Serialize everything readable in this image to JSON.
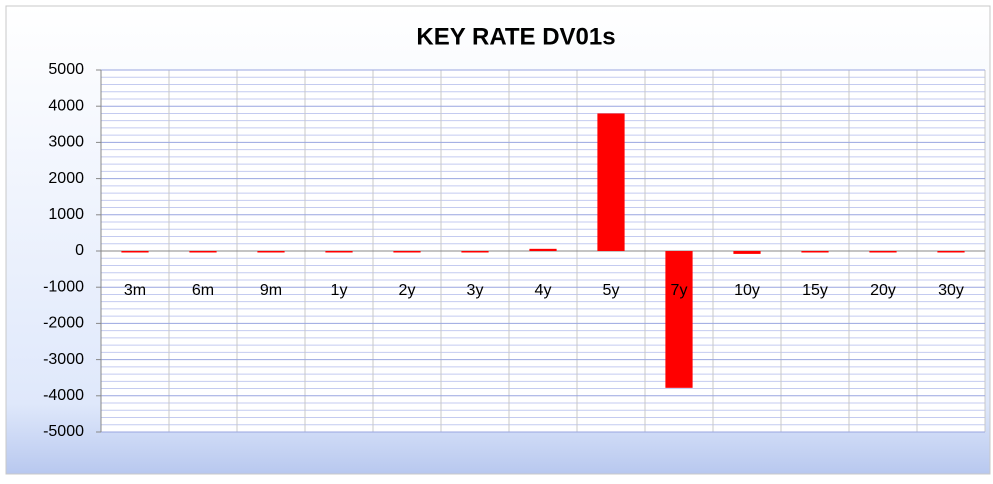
{
  "chart_data": {
    "type": "bar",
    "title": "KEY RATE DV01s",
    "categories": [
      "3m",
      "6m",
      "9m",
      "1y",
      "2y",
      "3y",
      "4y",
      "5y",
      "7y",
      "10y",
      "15y",
      "20y",
      "30y"
    ],
    "values": [
      -30,
      0,
      0,
      0,
      -30,
      -30,
      60,
      3800,
      -3780,
      -80,
      0,
      0,
      0
    ],
    "color": "#ff0000",
    "ylim": [
      -5000,
      5000
    ],
    "yticks": [
      -5000,
      -4000,
      -3000,
      -2000,
      -1000,
      0,
      1000,
      2000,
      3000,
      4000,
      5000
    ],
    "grid": true,
    "minor_grid": true
  }
}
